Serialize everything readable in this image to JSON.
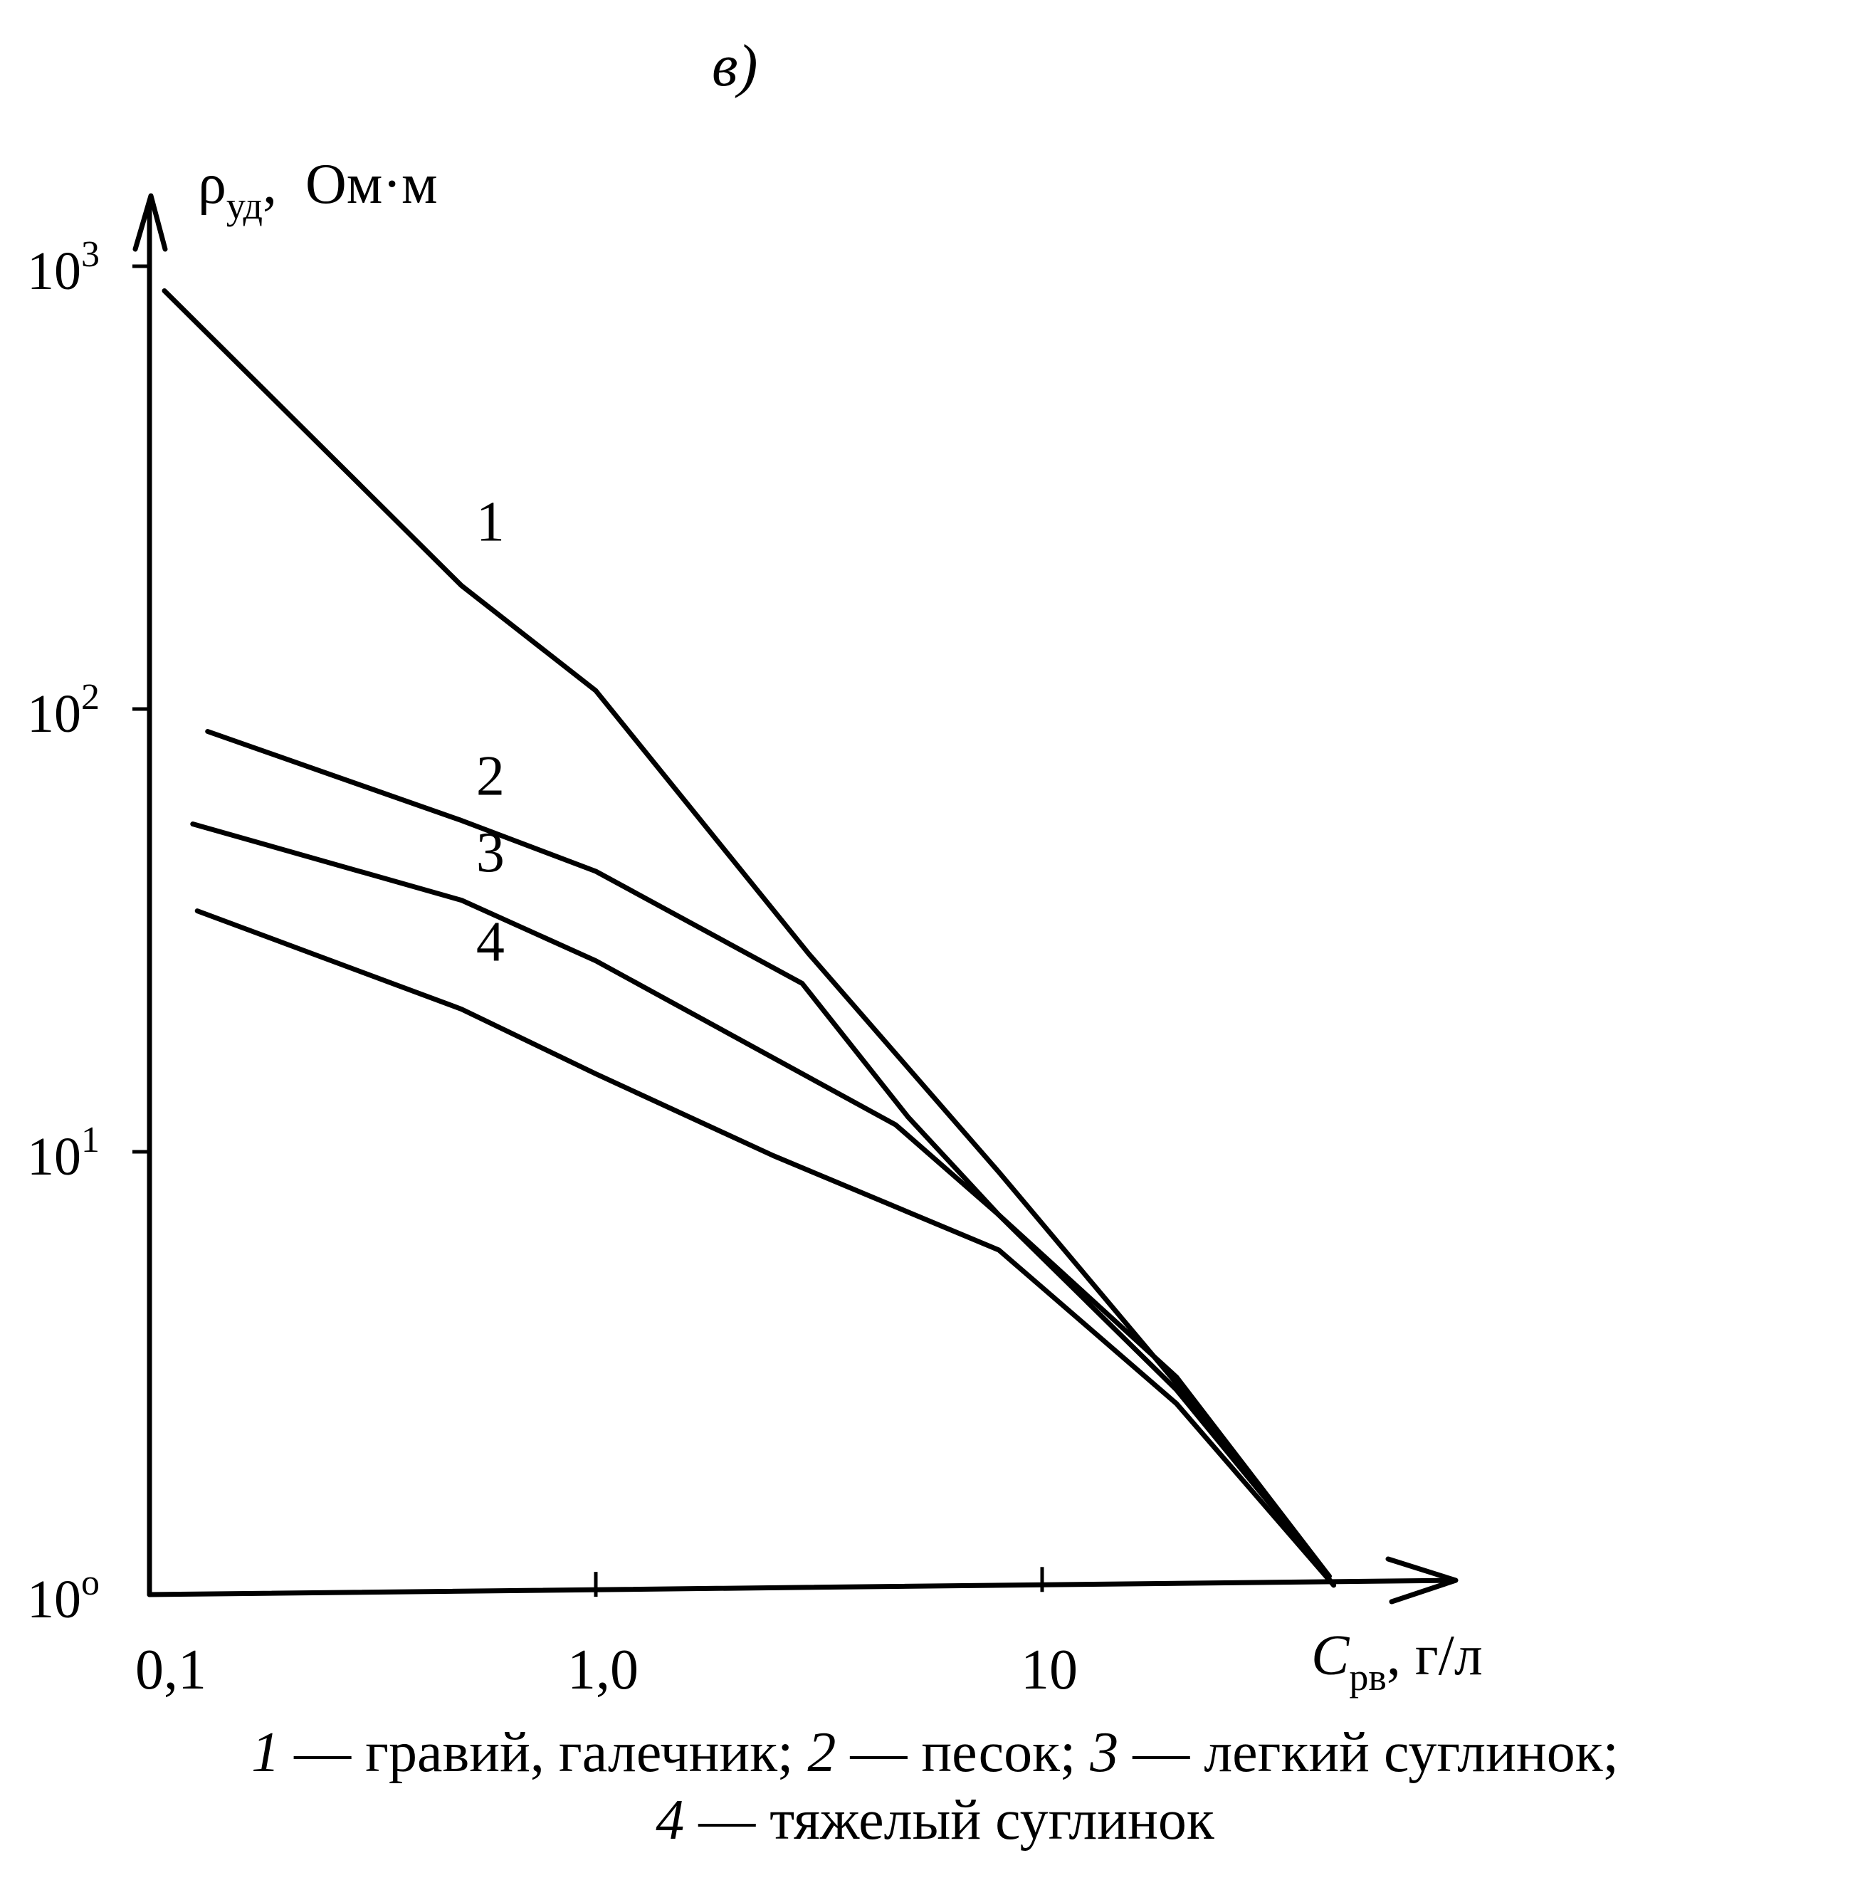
{
  "panel_label": "в)",
  "chart_data": {
    "type": "line",
    "x_scale": "log",
    "y_scale": "log",
    "xlabel": {
      "symbol": "C",
      "subscript": "рв",
      "unit": ", г/л"
    },
    "ylabel": {
      "symbol": "ρ",
      "subscript": "уд",
      "unit": ",  Ом·м"
    },
    "xlim": [
      0.1,
      60
    ],
    "ylim": [
      1,
      1000
    ],
    "x_ticks": [
      {
        "value": 0.1,
        "label": "0,1"
      },
      {
        "value": 1.0,
        "label": "1,0"
      },
      {
        "value": 10,
        "label": "10"
      }
    ],
    "y_ticks": [
      {
        "value": 1,
        "base": "10",
        "exp": "о"
      },
      {
        "value": 10,
        "base": "10",
        "exp": "1"
      },
      {
        "value": 100,
        "base": "10",
        "exp": "2"
      },
      {
        "value": 1000,
        "base": "10",
        "exp": "3"
      }
    ],
    "grid": false,
    "series": [
      {
        "name": "1",
        "points": [
          [
            0.108,
            880
          ],
          [
            0.5,
            190
          ],
          [
            1.0,
            110
          ],
          [
            3.0,
            28
          ],
          [
            8.0,
            9
          ],
          [
            20.0,
            3
          ],
          [
            45.0,
            1.05
          ]
        ]
      },
      {
        "name": "2",
        "points": [
          [
            0.135,
            89
          ],
          [
            0.5,
            56
          ],
          [
            1.0,
            43
          ],
          [
            2.9,
            24
          ],
          [
            5.0,
            12
          ],
          [
            8.0,
            7.2
          ],
          [
            20.0,
            3.1
          ],
          [
            44.0,
            1.1
          ]
        ]
      },
      {
        "name": "3",
        "points": [
          [
            0.125,
            55
          ],
          [
            0.5,
            37
          ],
          [
            1.0,
            27
          ],
          [
            4.7,
            11.5
          ],
          [
            8.0,
            7.2
          ],
          [
            20.0,
            2.9
          ],
          [
            44.0,
            1.1
          ]
        ]
      },
      {
        "name": "4",
        "points": [
          [
            0.128,
            35
          ],
          [
            0.5,
            21
          ],
          [
            1.0,
            15
          ],
          [
            2.5,
            9.8
          ],
          [
            8.0,
            6.0
          ],
          [
            20.0,
            2.7
          ],
          [
            45.0,
            1.05
          ]
        ]
      }
    ]
  },
  "legend": {
    "line1": [
      {
        "num": "1",
        "text": " — гравий, галечник; "
      },
      {
        "num": "2",
        "text": " — песок; "
      },
      {
        "num": "3",
        "text": " — легкий суглинок;"
      }
    ],
    "line2": [
      {
        "num": "4",
        "text": " — тяжелый суглинок"
      }
    ]
  }
}
